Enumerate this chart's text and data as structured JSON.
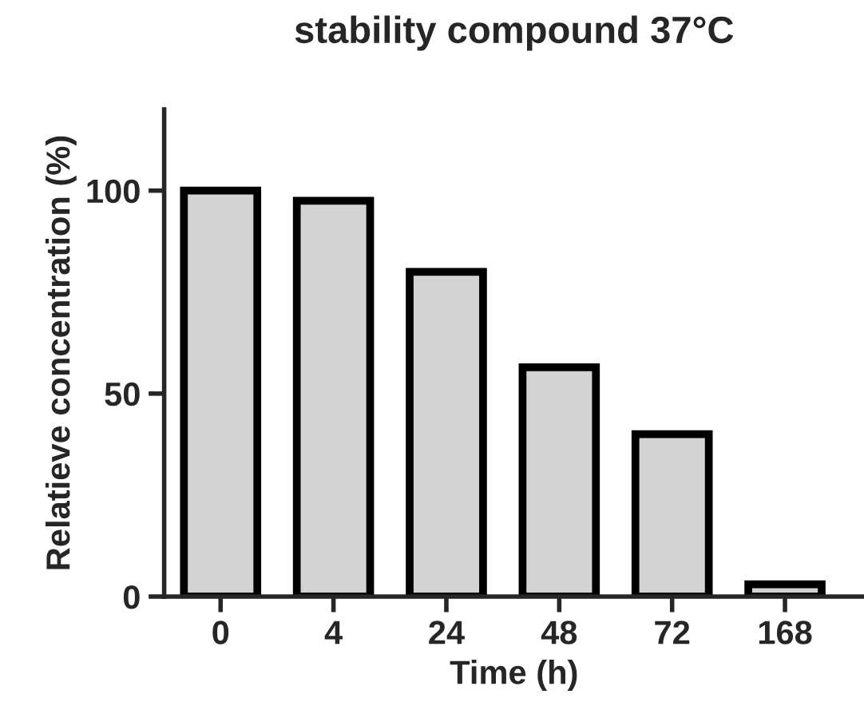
{
  "chart_data": {
    "type": "bar",
    "title": "stability compound 37°C",
    "xlabel": "Time (h)",
    "ylabel": "Relatieve concentration (%)",
    "categories": [
      "0",
      "4",
      "24",
      "48",
      "72",
      "168"
    ],
    "values": [
      100,
      97.5,
      80,
      56.5,
      40,
      3
    ],
    "color": "#d3d3d3",
    "ylim": [
      0,
      120
    ],
    "yticks": [
      0,
      50,
      100
    ],
    "grid": false
  }
}
